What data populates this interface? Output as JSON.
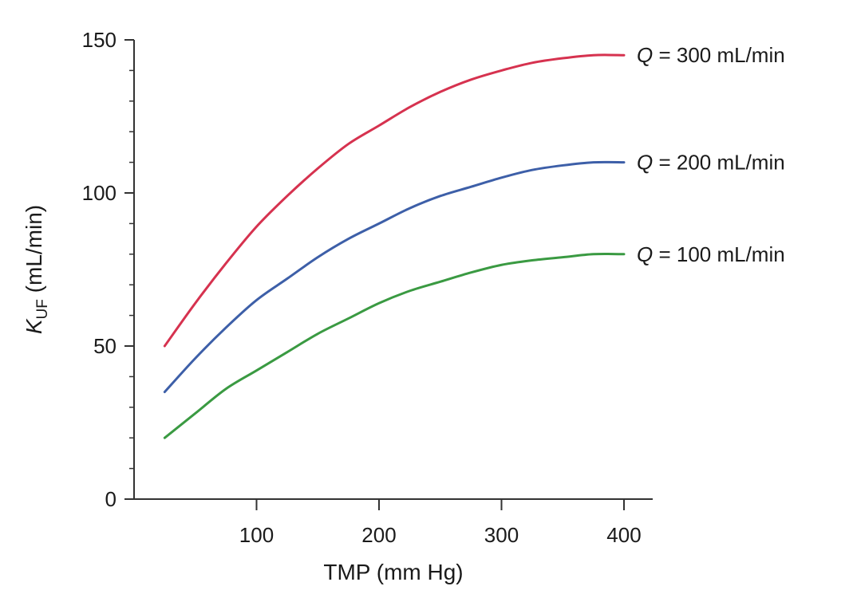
{
  "chart_data": {
    "type": "line",
    "title": "",
    "xlabel": "TMP (mm Hg)",
    "ylabel_main": "K",
    "ylabel_sub": "UF",
    "ylabel_rest": " (mL/min)",
    "xlim": [
      0,
      425
    ],
    "ylim": [
      0,
      150
    ],
    "x_ticks": [
      100,
      200,
      300,
      400
    ],
    "x_tick_labels": [
      "100",
      "200",
      "300",
      "400"
    ],
    "y_ticks": [
      0,
      50,
      100,
      150
    ],
    "y_tick_labels": [
      "0",
      "50",
      "100",
      "150"
    ],
    "y_minor_ticks": [
      10,
      20,
      30,
      40,
      60,
      70,
      80,
      90,
      110,
      120,
      130,
      140
    ],
    "grid": false,
    "legend": "inline-right",
    "series": [
      {
        "name": "Q = 300 mL/min",
        "label_italic": "Q",
        "label_rest": " = 300 mL/min",
        "color": "#d6324f",
        "x": [
          25,
          50,
          75,
          100,
          125,
          150,
          175,
          200,
          225,
          250,
          275,
          300,
          325,
          350,
          375,
          400
        ],
        "y": [
          50,
          64,
          77,
          89,
          99,
          108,
          116,
          122,
          128,
          133,
          137,
          140,
          142.5,
          144,
          145,
          145
        ]
      },
      {
        "name": "Q = 200 mL/min",
        "label_italic": "Q",
        "label_rest": " = 200 mL/min",
        "color": "#3d5fa8",
        "x": [
          25,
          50,
          75,
          100,
          125,
          150,
          175,
          200,
          225,
          250,
          275,
          300,
          325,
          350,
          375,
          400
        ],
        "y": [
          35,
          46,
          56,
          65,
          72,
          79,
          85,
          90,
          95,
          99,
          102,
          105,
          107.5,
          109,
          110,
          110
        ]
      },
      {
        "name": "Q = 100 mL/min",
        "label_italic": "Q",
        "label_rest": " = 100 mL/min",
        "color": "#3a9a42",
        "x": [
          25,
          50,
          75,
          100,
          125,
          150,
          175,
          200,
          225,
          250,
          275,
          300,
          325,
          350,
          375,
          400
        ],
        "y": [
          20,
          28,
          36,
          42,
          48,
          54,
          59,
          64,
          68,
          71,
          74,
          76.5,
          78,
          79,
          80,
          80
        ]
      }
    ]
  }
}
